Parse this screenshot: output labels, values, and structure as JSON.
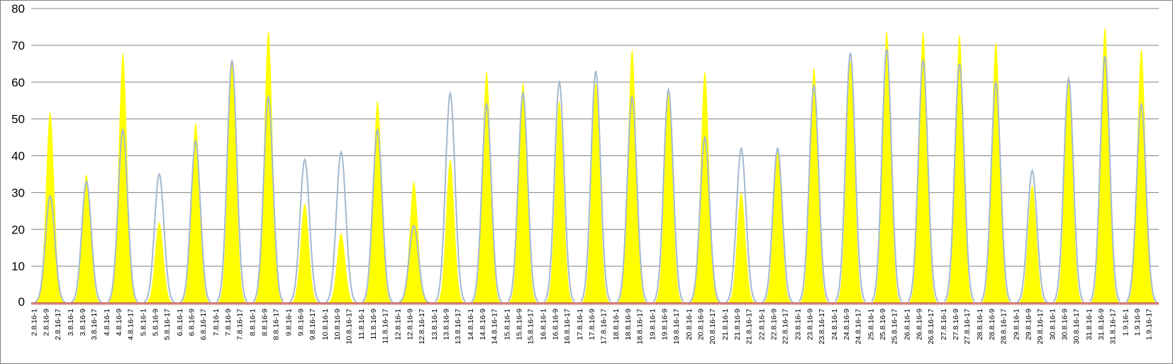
{
  "chart_data": {
    "type": "area",
    "title": "",
    "xlabel": "",
    "ylabel": "",
    "ylim": [
      0,
      80
    ],
    "yticks": [
      0,
      10,
      20,
      30,
      40,
      50,
      60,
      70,
      80
    ],
    "grid": true,
    "legend": "none",
    "x_tick_labels": [
      "2.8.16-1",
      "2.8.16-9",
      "2.8.16-17",
      "3.8.16-1",
      "3.8.16-9",
      "3.8.16-17",
      "4.8.16-1",
      "4.8.16-9",
      "4.8.16-17",
      "5.8.16-1",
      "5.8.16-9",
      "5.8.16-17",
      "6.8.16-1",
      "6.8.16-9",
      "6.8.16-17",
      "7.8.16-1",
      "7.8.16-9",
      "7.8.16-17",
      "8.8.16-1",
      "8.8.16-9",
      "8.8.16-17",
      "9.8.16-1",
      "9.8.16-9",
      "9.8.16-17",
      "10.8.16-1",
      "10.8.16-9",
      "10.8.16-17",
      "11.8.16-1",
      "11.8.16-9",
      "11.8.16-17",
      "12.8.16-1",
      "12.8.16-9",
      "12.8.16-17",
      "13.8.16-1",
      "13.8.16-9",
      "13.8.16-17",
      "14.8.16-1",
      "14.8.16-9",
      "14.8.16-17",
      "15.8.16-1",
      "15.8.16-9",
      "15.8.16-17",
      "16.8.16-1",
      "16.8.16-9",
      "16.8.16-17",
      "17.8.16-1",
      "17.8.16-9",
      "17.8.16-17",
      "18.8.16-1",
      "18.8.16-9",
      "18.8.16-17",
      "19.8.16-1",
      "19.8.16-9",
      "19.8.16-17",
      "20.8.16-1",
      "20.8.16-9",
      "20.8.16-17",
      "21.8.16-1",
      "21.8.16-9",
      "21.8.16-17",
      "22.8.16-1",
      "22.8.16-9",
      "22.8.16-17",
      "23.8.16-1",
      "23.8.16-9",
      "23.8.16-17",
      "24.8.16-1",
      "24.8.16-9",
      "24.8.16-17",
      "25.8.16-1",
      "25.8.16-9",
      "25.8.16-17",
      "26.8.16-1",
      "26.8.16-9",
      "26.8.16-17",
      "27.8.16-1",
      "27.8.16-9",
      "27.8.16-17",
      "28.8.16-1",
      "28.8.16-9",
      "28.8.16-17",
      "29.8.16-1",
      "29.8.16-9",
      "29.8.16-17",
      "30.8.16-1",
      "30.8.16-9",
      "30.8.16-17",
      "31.8.16-1",
      "31.8.16-9",
      "31.8.16-17",
      "1.9.16-1",
      "1.9.16-9",
      "1.9.16-17"
    ],
    "daily_peaks": {
      "days": [
        "2.8.16",
        "3.8.16",
        "4.8.16",
        "5.8.16",
        "6.8.16",
        "7.8.16",
        "8.8.16",
        "9.8.16",
        "10.8.16",
        "11.8.16",
        "12.8.16",
        "13.8.16",
        "14.8.16",
        "15.8.16",
        "16.8.16",
        "17.8.16",
        "18.8.16",
        "19.8.16",
        "20.8.16",
        "21.8.16",
        "22.8.16",
        "23.8.16",
        "24.8.16",
        "25.8.16",
        "26.8.16",
        "27.8.16",
        "28.8.16",
        "29.8.16",
        "30.8.16",
        "31.8.16",
        "1.9.16"
      ]
    },
    "series": [
      {
        "kind": "area",
        "color": "#ffff00",
        "peaks": [
          52,
          35,
          68,
          22,
          49,
          65,
          74,
          27,
          19,
          55,
          33,
          39,
          63,
          60,
          55,
          60,
          69,
          57,
          63,
          30,
          41,
          64,
          66,
          74,
          74,
          73,
          71,
          32,
          60,
          75,
          69
        ]
      },
      {
        "kind": "line",
        "color": "#a5b9cf",
        "peaks": [
          29,
          33,
          47,
          35,
          44,
          66,
          56,
          39,
          41,
          47,
          21,
          57,
          54,
          57,
          60,
          63,
          56,
          58,
          45,
          42,
          42,
          59,
          68,
          69,
          66,
          65,
          60,
          36,
          61,
          67,
          54
        ]
      }
    ],
    "zero_line_color": "#c0504d"
  }
}
